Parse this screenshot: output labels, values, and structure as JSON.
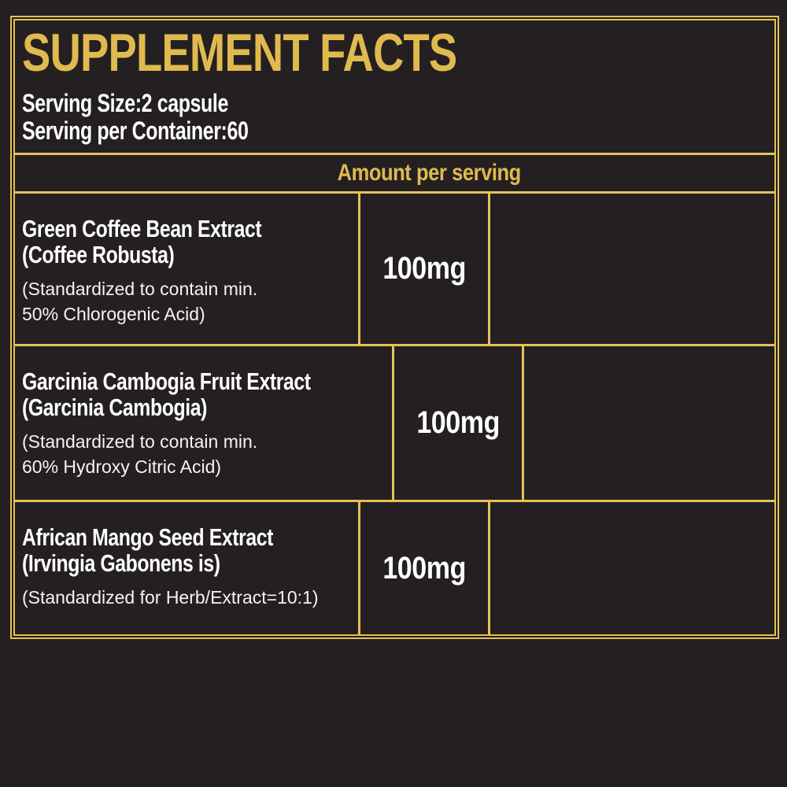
{
  "colors": {
    "background": "#241F20",
    "gold_text": "#DFBA4F",
    "gold_lines": "#E5C157",
    "white_text": "#FFFFFF"
  },
  "header": {
    "title": "SUPPLEMENT FACTS",
    "serving_size": "Serving Size:2 capsule",
    "servings_per_container": "Serving per Container:60"
  },
  "table": {
    "column_header": "Amount per serving",
    "rows": [
      {
        "name_line1": "Green Coffee Bean Extract",
        "name_line2": "(Coffee Robusta)",
        "note_line1": "(Standardized to contain min.",
        "note_line2": "50% Chlorogenic Acid)",
        "amount": "100mg",
        "daily_value": ""
      },
      {
        "name_line1": "Garcinia Cambogia Fruit Extract",
        "name_line2": "(Garcinia Cambogia)",
        "note_line1": "(Standardized to contain min.",
        "note_line2": "60% Hydroxy Citric Acid)",
        "amount": "100mg",
        "daily_value": ""
      },
      {
        "name_line1": "African Mango Seed Extract",
        "name_line2": "(Irvingia Gabonens is)",
        "note_line1": "(Standardized for Herb/Extract=10:1)",
        "note_line2": "",
        "amount": "100mg",
        "daily_value": ""
      }
    ]
  }
}
